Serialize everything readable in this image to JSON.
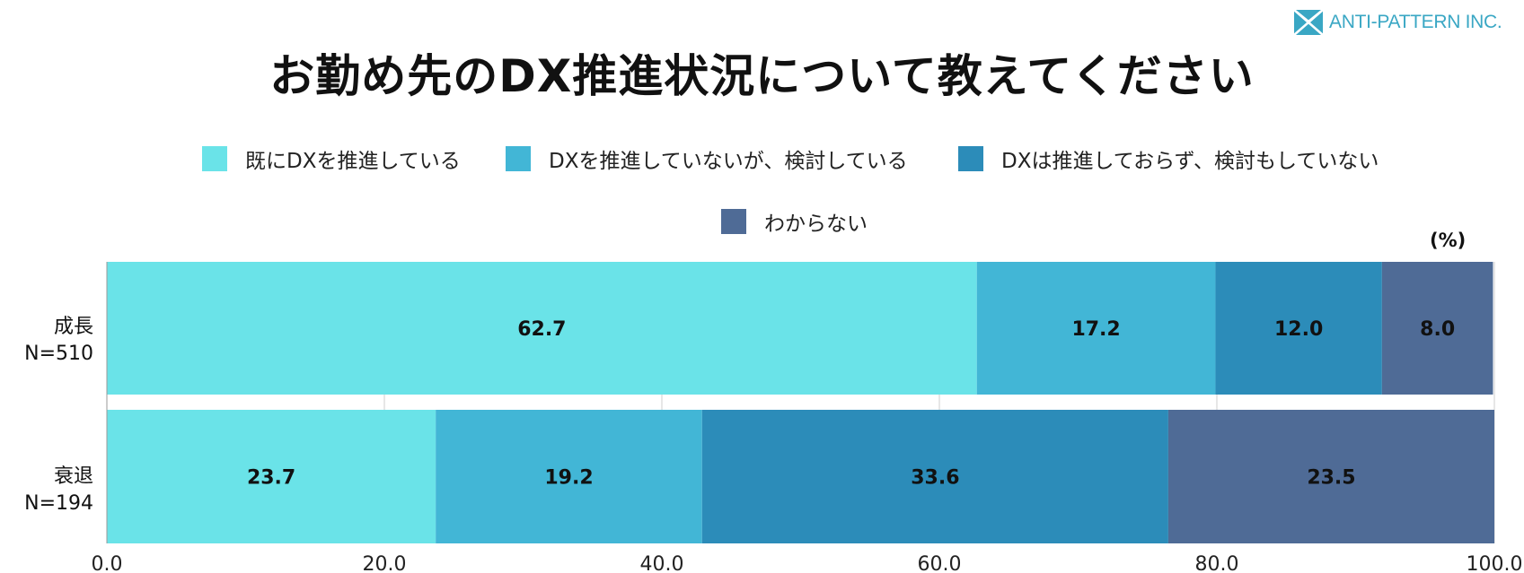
{
  "brand": {
    "name": "ANTI-PATTERN INC.",
    "icon": "envelope-x-logo",
    "color": "#3aa7c4"
  },
  "title": "お勤め先のDX推進状況について教えてください",
  "unit": "(%)",
  "chart_data": {
    "type": "bar",
    "orientation": "horizontal",
    "stacked": true,
    "title": "お勤め先のDX推進状況について教えてください",
    "xlim": [
      0,
      100
    ],
    "xticks": [
      "0.0",
      "20.0",
      "40.0",
      "60.0",
      "80.0",
      "100.0"
    ],
    "grid": true,
    "legend_position": "top",
    "categories": [
      {
        "name": "成長",
        "n": "N=510"
      },
      {
        "name": "衰退",
        "n": "N=194"
      }
    ],
    "series": [
      {
        "name": "既にDXを推進している",
        "color": "#6ae3e8",
        "values": [
          62.7,
          23.7
        ],
        "labels": [
          "62.7",
          "23.7"
        ]
      },
      {
        "name": "DXを推進していないが、検討している",
        "color": "#42b6d6",
        "values": [
          17.2,
          19.2
        ],
        "labels": [
          "17.2",
          "19.2"
        ]
      },
      {
        "name": "DXは推進しておらず、検討もしていない",
        "color": "#2c8cb9",
        "values": [
          12.0,
          33.6
        ],
        "labels": [
          "12.0",
          "33.6"
        ]
      },
      {
        "name": "わからない",
        "color": "#4f6b96",
        "values": [
          8.0,
          23.5
        ],
        "labels": [
          "8.0",
          "23.5"
        ]
      }
    ]
  }
}
